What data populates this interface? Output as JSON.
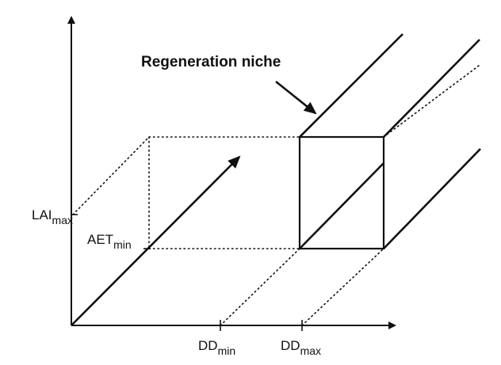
{
  "diagram": {
    "title": "Regeneration niche",
    "labels": {
      "lai": {
        "main": "LAI",
        "sub": "max"
      },
      "aet": {
        "main": "AET",
        "sub": "min"
      },
      "dd_min": {
        "main": "DD",
        "sub": "min"
      },
      "dd_max": {
        "main": "DD",
        "sub": "max"
      }
    }
  }
}
